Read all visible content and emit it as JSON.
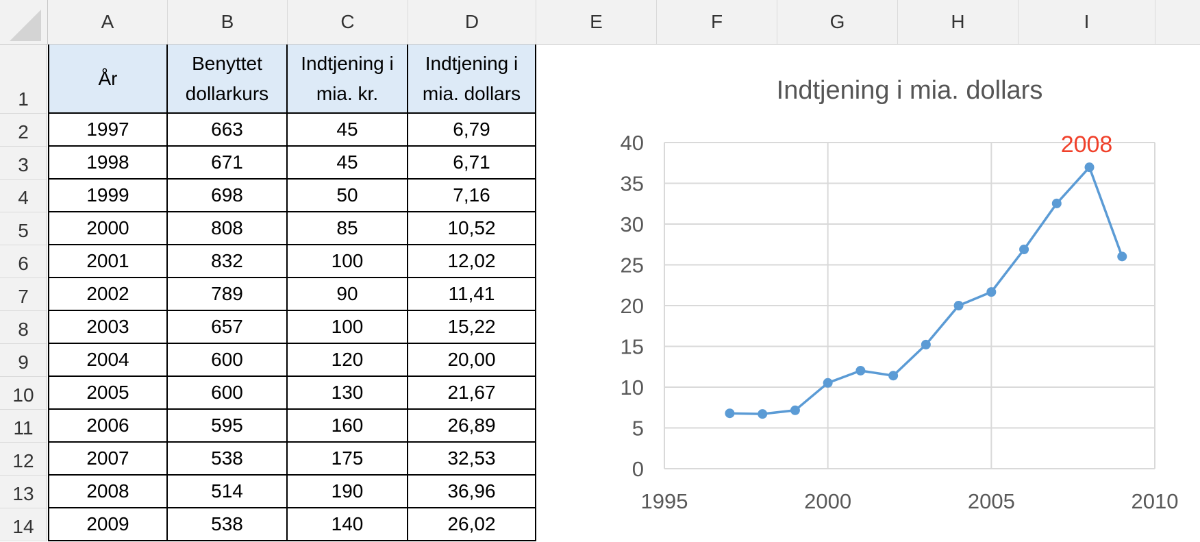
{
  "columns": [
    "A",
    "B",
    "C",
    "D",
    "E",
    "F",
    "G",
    "H",
    "I"
  ],
  "row_numbers": [
    "1",
    "2",
    "3",
    "4",
    "5",
    "6",
    "7",
    "8",
    "9",
    "10",
    "11",
    "12",
    "13",
    "14"
  ],
  "table": {
    "headers": [
      {
        "line1": "År",
        "line2": ""
      },
      {
        "line1": "Benyttet",
        "line2": "dollarkurs"
      },
      {
        "line1": "Indtjening i",
        "line2": "mia. kr."
      },
      {
        "line1": "Indtjening i",
        "line2": "mia. dollars"
      }
    ],
    "rows": [
      [
        "1997",
        "663",
        "45",
        "6,79"
      ],
      [
        "1998",
        "671",
        "45",
        "6,71"
      ],
      [
        "1999",
        "698",
        "50",
        "7,16"
      ],
      [
        "2000",
        "808",
        "85",
        "10,52"
      ],
      [
        "2001",
        "832",
        "100",
        "12,02"
      ],
      [
        "2002",
        "789",
        "90",
        "11,41"
      ],
      [
        "2003",
        "657",
        "100",
        "15,22"
      ],
      [
        "2004",
        "600",
        "120",
        "20,00"
      ],
      [
        "2005",
        "600",
        "130",
        "21,67"
      ],
      [
        "2006",
        "595",
        "160",
        "26,89"
      ],
      [
        "2007",
        "538",
        "175",
        "32,53"
      ],
      [
        "2008",
        "514",
        "190",
        "36,96"
      ],
      [
        "2009",
        "538",
        "140",
        "26,02"
      ]
    ]
  },
  "chart_data": {
    "type": "scatter",
    "title": "Indtjening i mia. dollars",
    "x": [
      1997,
      1998,
      1999,
      2000,
      2001,
      2002,
      2003,
      2004,
      2005,
      2006,
      2007,
      2008,
      2009
    ],
    "series": [
      {
        "values": [
          6.79,
          6.71,
          7.16,
          10.52,
          12.02,
          11.41,
          15.22,
          20.0,
          21.67,
          26.89,
          32.53,
          36.96,
          26.02
        ]
      }
    ],
    "xlim": [
      1995,
      2010
    ],
    "ylim": [
      0,
      40
    ],
    "xticks": [
      1995,
      2000,
      2005,
      2010
    ],
    "yticks": [
      0,
      5,
      10,
      15,
      20,
      25,
      30,
      35,
      40
    ],
    "grid": true,
    "line_color": "#5b9bd5",
    "annotation": {
      "text": "2008",
      "x": 2008,
      "y": 36.96,
      "color": "#f0402a"
    }
  }
}
